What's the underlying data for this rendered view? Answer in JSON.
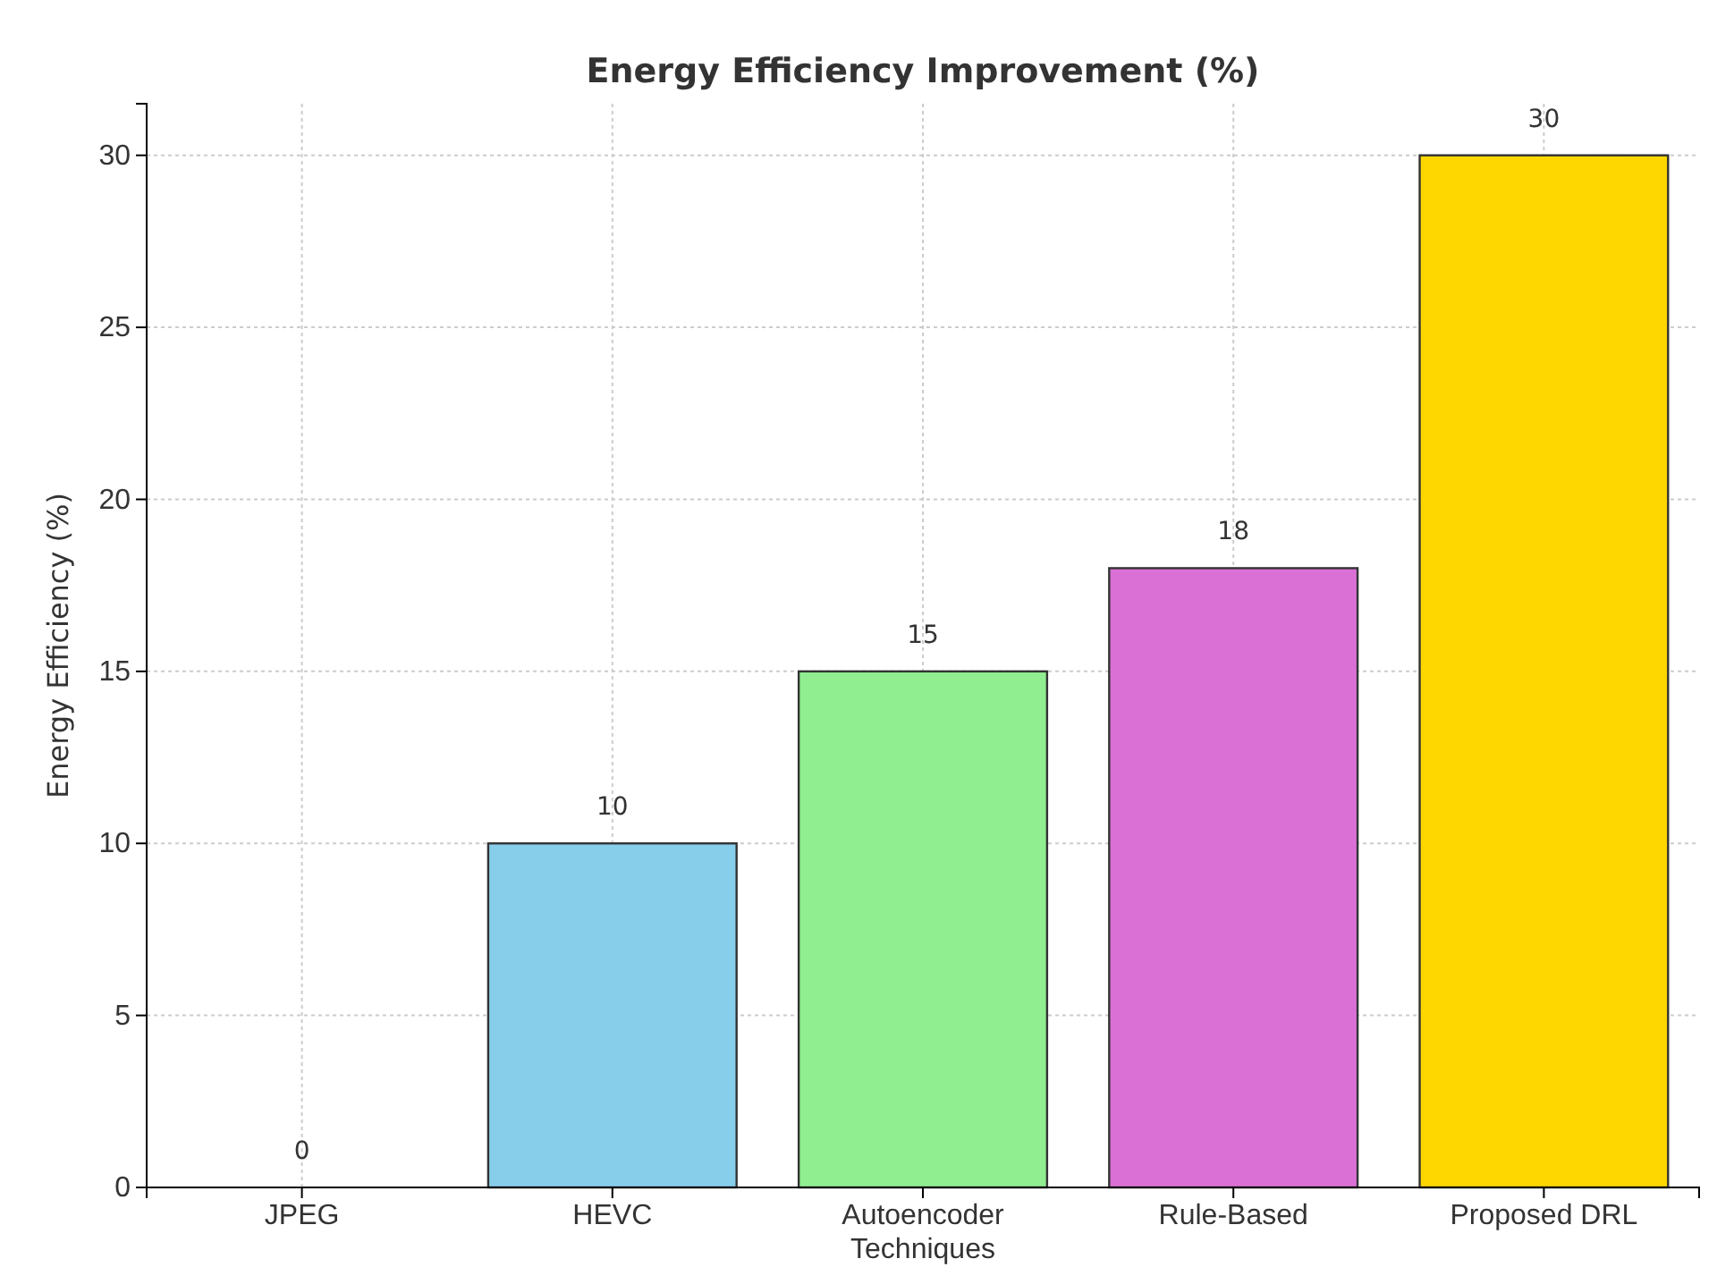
{
  "chart_data": {
    "type": "bar",
    "title": "Energy Efficiency Improvement (%)",
    "ylabel": "Energy Efficiency (%)",
    "categories": [
      "JPEG",
      "HEVC",
      "Autoencoder Techniques",
      "Rule-Based",
      "Proposed DRL"
    ],
    "values": [
      0,
      10,
      15,
      18,
      30
    ],
    "colors": [
      "#ff6347",
      "#87ceeb",
      "#90ee90",
      "#da70d6",
      "#ffd700"
    ],
    "ylim": [
      0,
      31.5
    ],
    "yticks": [
      0,
      5,
      10,
      15,
      20,
      25,
      30
    ],
    "grid": true,
    "data_labels": true
  }
}
